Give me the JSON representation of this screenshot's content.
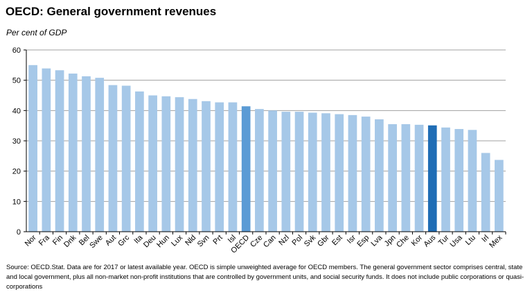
{
  "title": "OECD: General government revenues",
  "subtitle": "Per cent of GDP",
  "source": "Source: OECD.Stat. Data are for 2017 or latest available year. OECD is simple unweighted average for OECD members. The general government sector comprises central, state and local government, plus all non-market non-profit institutions that are controlled by government units, and social security funds. It does not include public corporations or quasi-corporations",
  "colors": {
    "bar": "#a6c8e8",
    "oecd": "#5b9bd5",
    "aus": "#1f6db5",
    "grid": "#a0a0a0",
    "axis": "#000000"
  },
  "chart_data": {
    "type": "bar",
    "title": "OECD: General government revenues",
    "ylabel": "Per cent of GDP",
    "xlabel": "",
    "ylim": [
      0,
      60
    ],
    "yticks": [
      0,
      10,
      20,
      30,
      40,
      50,
      60
    ],
    "grid": true,
    "categories": [
      "Nor",
      "Fra",
      "Fin",
      "Dnk",
      "Bel",
      "Swe",
      "Aut",
      "Grc",
      "Ita",
      "Deu",
      "Hun",
      "Lux",
      "Nld",
      "Svn",
      "Prt",
      "Isl",
      "OECD",
      "Cze",
      "Can",
      "Nzl",
      "Pol",
      "Svk",
      "Gbr",
      "Est",
      "Isr",
      "Esp",
      "Lva",
      "Jpn",
      "Che",
      "Kor",
      "Aus",
      "Tur",
      "Usa",
      "Ltu",
      "Irl",
      "Mex"
    ],
    "values": [
      55.0,
      53.9,
      53.3,
      52.2,
      51.3,
      50.8,
      48.4,
      48.2,
      46.3,
      45.0,
      44.7,
      44.4,
      43.8,
      43.1,
      42.7,
      42.7,
      41.4,
      40.5,
      40.0,
      39.6,
      39.6,
      39.3,
      39.1,
      38.8,
      38.5,
      38.0,
      37.1,
      35.5,
      35.5,
      35.3,
      35.1,
      34.4,
      33.9,
      33.6,
      26.0,
      23.7
    ],
    "highlight": {
      "OECD": "oecd",
      "Aus": "aus"
    }
  }
}
